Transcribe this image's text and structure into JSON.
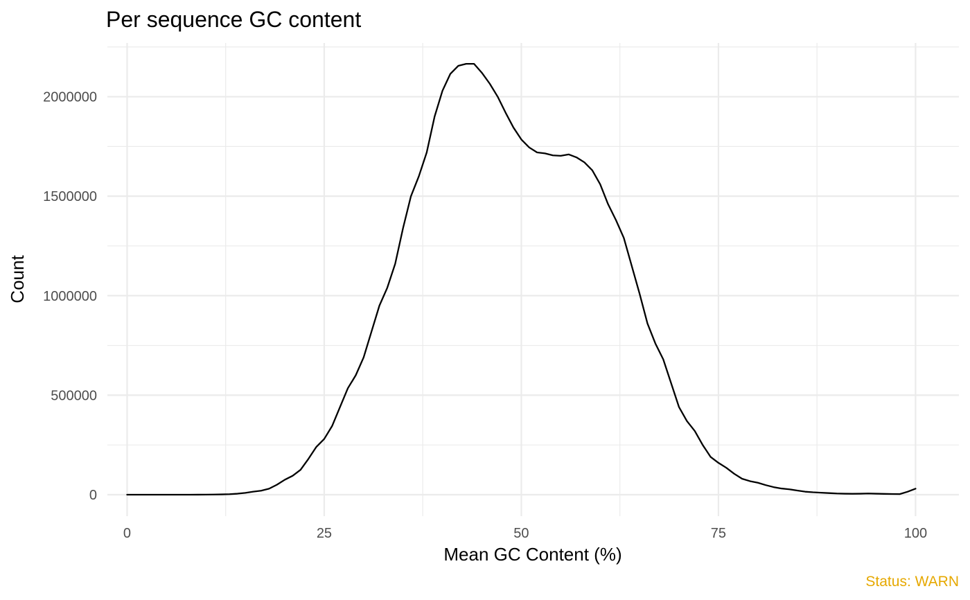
{
  "chart_data": {
    "type": "line",
    "title": "Per sequence GC content",
    "xlabel": "Mean GC Content (%)",
    "ylabel": "Count",
    "xlim": [
      -2.5,
      105.5
    ],
    "ylim": [
      -108000,
      2270000
    ],
    "x_ticks": [
      0,
      25,
      50,
      75,
      100
    ],
    "x_tick_labels": [
      "0",
      "25",
      "50",
      "75",
      "100"
    ],
    "y_ticks": [
      0,
      500000,
      1000000,
      1500000,
      2000000
    ],
    "y_tick_labels": [
      "0",
      "500000",
      "1000000",
      "1500000",
      "2000000"
    ],
    "grid": true,
    "line_color": "#000000",
    "x": [
      0,
      1,
      2,
      3,
      4,
      5,
      6,
      7,
      8,
      9,
      10,
      11,
      12,
      13,
      14,
      15,
      16,
      17,
      18,
      19,
      20,
      21,
      22,
      23,
      24,
      25,
      26,
      27,
      28,
      29,
      30,
      31,
      32,
      33,
      34,
      35,
      36,
      37,
      38,
      39,
      40,
      41,
      42,
      43,
      44,
      45,
      46,
      47,
      48,
      49,
      50,
      51,
      52,
      53,
      54,
      55,
      56,
      57,
      58,
      59,
      60,
      61,
      62,
      63,
      64,
      65,
      66,
      67,
      68,
      69,
      70,
      71,
      72,
      73,
      74,
      75,
      76,
      77,
      78,
      79,
      80,
      81,
      82,
      83,
      84,
      85,
      86,
      87,
      88,
      89,
      90,
      91,
      92,
      93,
      94,
      95,
      96,
      97,
      98,
      99,
      100
    ],
    "y": [
      0,
      0,
      0,
      0,
      0,
      0,
      0,
      0,
      0,
      200,
      500,
      800,
      1500,
      2500,
      5000,
      9000,
      15000,
      20000,
      30000,
      50000,
      75000,
      95000,
      125000,
      180000,
      240000,
      280000,
      345000,
      440000,
      535000,
      600000,
      690000,
      820000,
      950000,
      1040000,
      1160000,
      1340000,
      1500000,
      1600000,
      1720000,
      1900000,
      2030000,
      2115000,
      2155000,
      2165000,
      2165000,
      2120000,
      2065000,
      2000000,
      1920000,
      1845000,
      1785000,
      1745000,
      1720000,
      1715000,
      1705000,
      1703000,
      1710000,
      1695000,
      1670000,
      1630000,
      1560000,
      1460000,
      1380000,
      1290000,
      1150000,
      1010000,
      860000,
      760000,
      680000,
      560000,
      440000,
      370000,
      320000,
      250000,
      190000,
      160000,
      135000,
      105000,
      80000,
      68000,
      60000,
      48000,
      38000,
      31000,
      27000,
      21000,
      15000,
      12000,
      10000,
      8000,
      6000,
      5000,
      4500,
      5000,
      6000,
      5000,
      4000,
      3500,
      3000,
      15000,
      30000
    ]
  },
  "status": {
    "text": "Status: WARN",
    "color": "#e6a800"
  }
}
